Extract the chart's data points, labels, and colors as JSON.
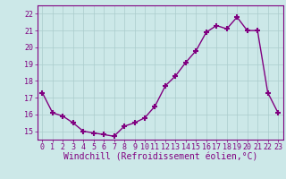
{
  "x": [
    0,
    1,
    2,
    3,
    4,
    5,
    6,
    7,
    8,
    9,
    10,
    11,
    12,
    13,
    14,
    15,
    16,
    17,
    18,
    19,
    20,
    21,
    22,
    23
  ],
  "y": [
    17.3,
    16.1,
    15.9,
    15.5,
    15.0,
    14.9,
    14.8,
    14.7,
    15.3,
    15.5,
    15.8,
    16.5,
    17.7,
    18.3,
    19.1,
    19.8,
    20.9,
    21.3,
    21.1,
    21.8,
    21.0,
    21.0,
    17.3,
    16.1
  ],
  "line_color": "#800080",
  "marker": "+",
  "marker_size": 4,
  "bg_color": "#cce8e8",
  "grid_color": "#aacccc",
  "xlabel": "Windchill (Refroidissement éolien,°C)",
  "xlim": [
    -0.5,
    23.5
  ],
  "ylim": [
    14.5,
    22.5
  ],
  "yticks": [
    15,
    16,
    17,
    18,
    19,
    20,
    21,
    22
  ],
  "xticks": [
    0,
    1,
    2,
    3,
    4,
    5,
    6,
    7,
    8,
    9,
    10,
    11,
    12,
    13,
    14,
    15,
    16,
    17,
    18,
    19,
    20,
    21,
    22,
    23
  ],
  "tick_fontsize": 6,
  "xlabel_fontsize": 7,
  "label_color": "#800080",
  "linewidth": 1.0,
  "marker_thickness": 1.5
}
